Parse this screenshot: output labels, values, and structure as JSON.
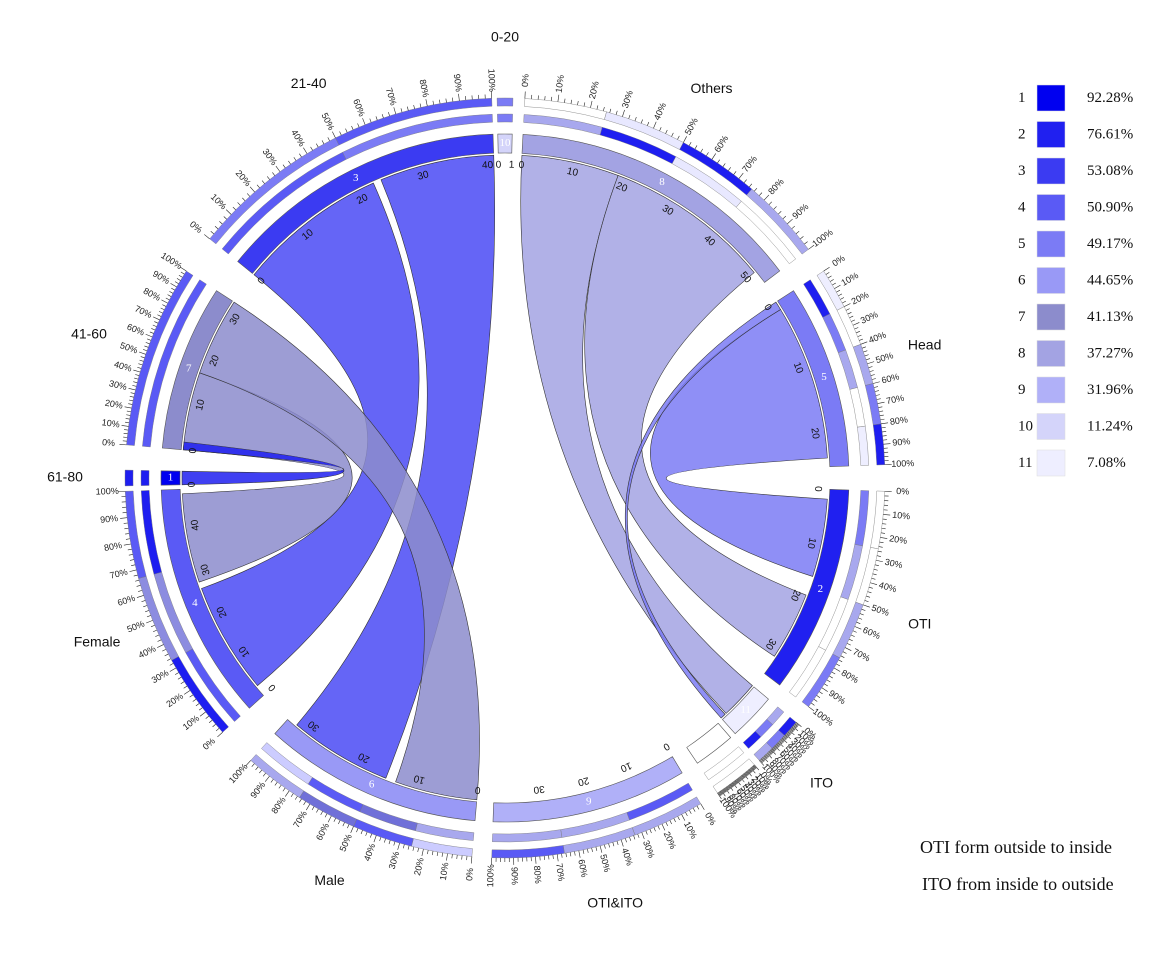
{
  "chart_data": {
    "type": "chord",
    "title": "",
    "sectors": [
      {
        "key": "Head",
        "label": "Head",
        "max": 25,
        "ticks": [
          0,
          10,
          20
        ],
        "color": "#7b7bf5",
        "id_label": "5",
        "segments": [
          "#1e1ef0",
          "#7b7bf5",
          "#a8a8ee",
          "#ffffff",
          "#eeeeff"
        ]
      },
      {
        "key": "OTI",
        "label": "OTI",
        "max": 35,
        "ticks": [
          0,
          10,
          20,
          30
        ],
        "color": "#2020f0",
        "id_label": "2",
        "segments": [
          "#7b7bf5",
          "#a8a8ee",
          "#ffffff",
          "#ffffff"
        ]
      },
      {
        "key": "OTI&ITO",
        "label": "ITO",
        "max": 2,
        "ticks": [],
        "color": "#eeeeff",
        "id_label": "11",
        "segments": [
          "#a8a8ee",
          "#7b7bf5",
          "#1e1ef0"
        ]
      },
      {
        "key": "ITO",
        "label": "ITO",
        "max": 0,
        "ticks": [
          0
        ],
        "color": "#ffffff",
        "id_label": "",
        "segments": []
      },
      {
        "key": "OTI&ITO",
        "label": "OTI&ITO",
        "max": 40,
        "ticks": [
          0,
          10,
          20,
          30
        ],
        "color": "#b0b0f8",
        "id_label": "9",
        "segments": [
          "#5a5af5",
          "#a8a8ee",
          "#a8a8ee"
        ]
      },
      {
        "key": "Male",
        "label": "Male",
        "max": 34,
        "ticks": [
          0,
          10,
          20,
          30
        ],
        "color": "#9999f6",
        "id_label": "6",
        "segments": [
          "#a8a8ee",
          "#7070d8",
          "#5a5af5",
          "#ccccff"
        ]
      },
      {
        "key": "Female",
        "label": "Female",
        "max": 48,
        "ticks": [
          0,
          10,
          20,
          30,
          40
        ],
        "color": "#5a5af5",
        "id_label": "4",
        "segments": [
          "#5a5af5",
          "#8c8ce0",
          "#1e1ef0"
        ]
      },
      {
        "key": "61-80",
        "label": "61-80",
        "max": 3,
        "ticks": [
          0
        ],
        "color": "#0000f0",
        "id_label": "1",
        "segments": [
          "#1e1ef0"
        ]
      },
      {
        "key": "41-60",
        "label": "41-60",
        "max": 33,
        "ticks": [
          0,
          10,
          20,
          30
        ],
        "color": "#8c8ccc",
        "id_label": "7",
        "segments": [
          "#5a5af5"
        ]
      },
      {
        "key": "21-40",
        "label": "21-40",
        "max": 41,
        "ticks": [
          0,
          10,
          20,
          30,
          40
        ],
        "color": "#3b3bf2",
        "id_label": "3",
        "segments": [
          "#5a5af5",
          "#7b7bf5"
        ]
      },
      {
        "key": "0-20",
        "label": "0-20",
        "max": 1,
        "ticks": [
          0,
          1
        ],
        "color": "#d4d4fa",
        "id_label": "10",
        "segments": [
          "#7b7bf5"
        ]
      },
      {
        "key": "Others",
        "label": "Others",
        "max": 53,
        "ticks": [
          0,
          10,
          20,
          30,
          40,
          50
        ],
        "color": "#a3a3e3",
        "id_label": "8",
        "segments": [
          "#a8a8ee",
          "#1e1ef0",
          "#e8e8ff",
          "#ffffff"
        ]
      }
    ],
    "percent_tick_labels": [
      "0%",
      "10%",
      "20%",
      "30%",
      "40%",
      "50%",
      "60%",
      "70%",
      "80%",
      "90%",
      "100%"
    ],
    "legend": [
      {
        "rank": "1",
        "value": "92.28%",
        "color": "#0000f0"
      },
      {
        "rank": "2",
        "value": "76.61%",
        "color": "#2020f0"
      },
      {
        "rank": "3",
        "value": "53.08%",
        "color": "#3b3bf2"
      },
      {
        "rank": "4",
        "value": "50.90%",
        "color": "#5a5af5"
      },
      {
        "rank": "5",
        "value": "49.17%",
        "color": "#7b7bf5"
      },
      {
        "rank": "6",
        "value": "44.65%",
        "color": "#9999f6"
      },
      {
        "rank": "7",
        "value": "41.13%",
        "color": "#8c8ccc"
      },
      {
        "rank": "8",
        "value": "37.27%",
        "color": "#a3a3e3"
      },
      {
        "rank": "9",
        "value": "31.96%",
        "color": "#b0b0f8"
      },
      {
        "rank": "10",
        "value": "11.24%",
        "color": "#d4d4fa"
      },
      {
        "rank": "11",
        "value": "7.08%",
        "color": "#eeeeff"
      }
    ],
    "links": [
      {
        "source": "21-40",
        "target": "Male",
        "color": "#4a4af4"
      },
      {
        "source": "21-40",
        "target": "Female",
        "color": "#4a4af4"
      },
      {
        "source": "41-60",
        "target": "Male",
        "color": "#8c8ccc"
      },
      {
        "source": "41-60",
        "target": "Female",
        "color": "#8c8ccc"
      },
      {
        "source": "61-80",
        "target": "Female",
        "color": "#1e1ef0"
      },
      {
        "source": "Others",
        "target": "OTI&ITO",
        "color": "#a3a3e3"
      },
      {
        "source": "Others",
        "target": "OTI",
        "color": "#a3a3e3"
      },
      {
        "source": "Head",
        "target": "OTI",
        "color": "#7b7bf5"
      },
      {
        "source": "Head",
        "target": "OTI&ITO",
        "color": "#7b7bf5"
      },
      {
        "source": "OTI&ITO",
        "target": "Head",
        "color": "#b0b0f8"
      }
    ],
    "notes": [
      "OTI  form outside to inside",
      "ITO from inside to outside"
    ]
  }
}
